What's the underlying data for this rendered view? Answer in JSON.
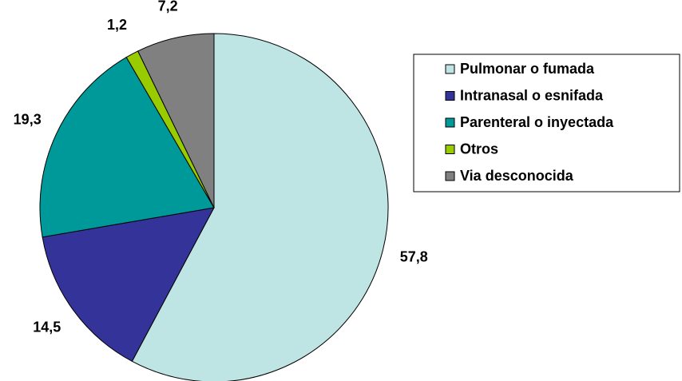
{
  "chart_data": {
    "type": "pie",
    "categories": [
      "Pulmonar o fumada",
      "Intranasal o esnifada",
      "Parenteral o inyectada",
      "Otros",
      "Via desconocida"
    ],
    "values": [
      57.8,
      14.5,
      19.3,
      1.2,
      7.2
    ],
    "value_labels": [
      "57,8",
      "14,5",
      "19,3",
      "1,2",
      "7,2"
    ],
    "colors": [
      "#bfe4e4",
      "#333399",
      "#009999",
      "#99cc00",
      "#808080"
    ]
  }
}
